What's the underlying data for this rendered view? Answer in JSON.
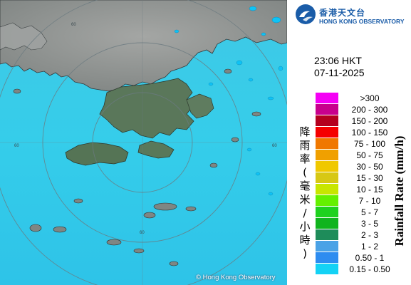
{
  "map": {
    "copyright": "© Hong Kong Observatory",
    "range_ring_label": "60",
    "colors": {
      "sea": "#2fc8ea",
      "land_dark": "#4d6e4e",
      "land_gray": "#8f9290",
      "rain": "#0fc3f5",
      "ring": "#6b7a80"
    }
  },
  "header": {
    "logo_zh": "香港天文台",
    "logo_en": "HONG KONG OBSERVATORY",
    "brand_color": "#1a5ca8"
  },
  "timestamp": {
    "time": "23:06 HKT",
    "date": "07-11-2025"
  },
  "legend": {
    "title_zh": "降雨率(毫米/小時)",
    "title_en": "Rainfall Rate (mm/h)",
    "items": [
      {
        "label": ">300",
        "color": "#f500f5"
      },
      {
        "label": "200 - 300",
        "color": "#c8008c"
      },
      {
        "label": "150 - 200",
        "color": "#b4001e"
      },
      {
        "label": "100 - 150",
        "color": "#f50000"
      },
      {
        "label": "75 - 100",
        "color": "#f07800"
      },
      {
        "label": "50 - 75",
        "color": "#f0a000"
      },
      {
        "label": "30 - 50",
        "color": "#f0c800"
      },
      {
        "label": "15 - 30",
        "color": "#d7c814"
      },
      {
        "label": "10 - 15",
        "color": "#c8e600"
      },
      {
        "label": "7 - 10",
        "color": "#64f000"
      },
      {
        "label": "5 - 7",
        "color": "#1ed21e"
      },
      {
        "label": "3 - 5",
        "color": "#10b41e"
      },
      {
        "label": "2 - 3",
        "color": "#1e8c5a"
      },
      {
        "label": "1 - 2",
        "color": "#4aa2e6"
      },
      {
        "label": "0.50 - 1",
        "color": "#2d8cf0"
      },
      {
        "label": "0.15 - 0.50",
        "color": "#14d2f5"
      }
    ]
  }
}
